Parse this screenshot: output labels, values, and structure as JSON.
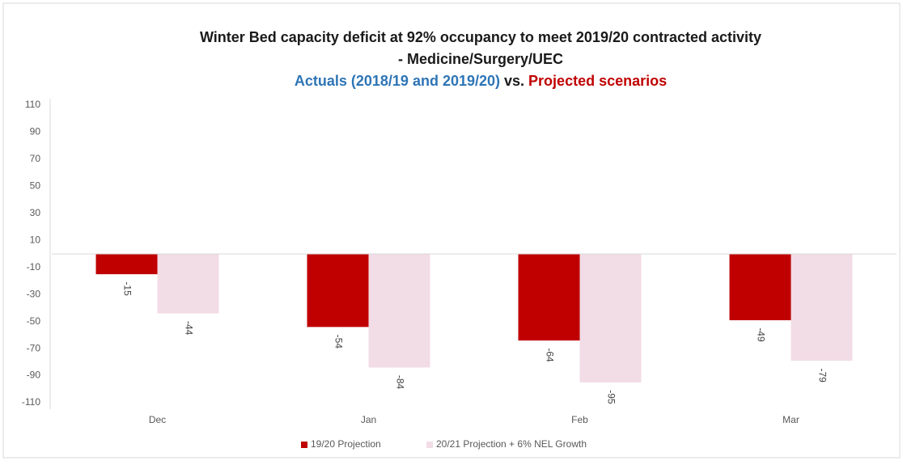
{
  "chart_data": {
    "type": "bar",
    "title": [
      "Winter Bed capacity deficit at 92% occupancy to meet 2019/20 contracted activity",
      "- Medicine/Surgery/UEC"
    ],
    "subtitle": [
      {
        "text": "Actuals (2018/19 and 2019/20)",
        "color": "#2e75b6"
      },
      {
        "text": "vs.",
        "color": "#1a1a1a"
      },
      {
        "text": "Projected scenarios",
        "color": "#c00000"
      }
    ],
    "categories": [
      "Dec",
      "Jan",
      "Feb",
      "Mar"
    ],
    "series": [
      {
        "name": "19/20 Projection",
        "color": "#c00000",
        "values": [
          -15,
          -54,
          -64,
          -49
        ]
      },
      {
        "name": "20/21 Projection + 6% NEL Growth",
        "color": "#f2dce6",
        "values": [
          -44,
          -84,
          -95,
          -79
        ]
      }
    ],
    "ylim": [
      -110,
      110
    ],
    "yticks": [
      110,
      90,
      70,
      50,
      30,
      10,
      -10,
      -30,
      -50,
      -70,
      -90,
      -110
    ],
    "grid": false,
    "legend": "bottom"
  }
}
